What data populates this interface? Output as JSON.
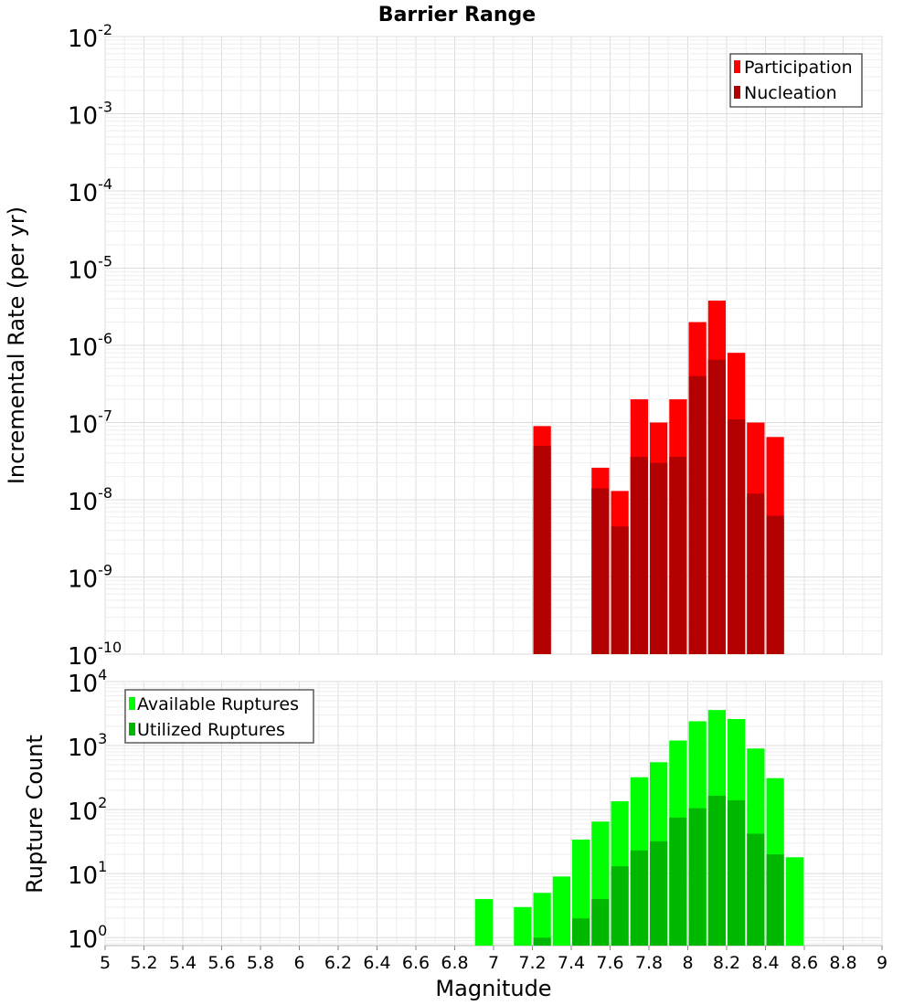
{
  "title": "Barrier Range",
  "chart_data": [
    {
      "type": "bar",
      "ylabel": "Incremental Rate (per yr)",
      "xlabel": "",
      "yscale": "log",
      "ylim": [
        1e-10,
        0.01
      ],
      "xlim": [
        5,
        9
      ],
      "legend_position": "top-right",
      "x": [
        7.25,
        7.55,
        7.65,
        7.75,
        7.85,
        7.95,
        8.05,
        8.15,
        8.25,
        8.35,
        8.45
      ],
      "series": [
        {
          "name": "Participation",
          "color": "#ff0000",
          "values": [
            9e-08,
            2.6e-08,
            1.3e-08,
            2e-07,
            1e-07,
            2e-07,
            2e-06,
            3.8e-06,
            8e-07,
            1e-07,
            6.5e-08
          ]
        },
        {
          "name": "Nucleation",
          "color": "#b30000",
          "values": [
            5e-08,
            1.4e-08,
            4.5e-09,
            3.6e-08,
            3e-08,
            3.6e-08,
            4e-07,
            6.5e-07,
            1.1e-07,
            1.2e-08,
            6.2e-09
          ]
        }
      ],
      "yticks": [
        {
          "base": "10",
          "exp": "-2"
        },
        {
          "base": "10",
          "exp": "-3"
        },
        {
          "base": "10",
          "exp": "-4"
        },
        {
          "base": "10",
          "exp": "-5"
        },
        {
          "base": "10",
          "exp": "-6"
        },
        {
          "base": "10",
          "exp": "-7"
        },
        {
          "base": "10",
          "exp": "-8"
        },
        {
          "base": "10",
          "exp": "-9"
        },
        {
          "base": "10",
          "exp": "-10"
        }
      ]
    },
    {
      "type": "bar",
      "ylabel": "Rupture Count",
      "xlabel": "Magnitude",
      "yscale": "log",
      "ylim": [
        0.75,
        10000
      ],
      "xlim": [
        5,
        9
      ],
      "legend_position": "top-left",
      "x": [
        6.95,
        7.15,
        7.25,
        7.35,
        7.45,
        7.55,
        7.65,
        7.75,
        7.85,
        7.95,
        8.05,
        8.15,
        8.25,
        8.35,
        8.45,
        8.55
      ],
      "series": [
        {
          "name": "Available Ruptures",
          "color": "#00ff00",
          "values": [
            4,
            3,
            5,
            9,
            34,
            65,
            135,
            320,
            550,
            1200,
            2400,
            3600,
            2600,
            900,
            310,
            18
          ]
        },
        {
          "name": "Utilized Ruptures",
          "color": "#00b800",
          "values": [
            null,
            null,
            1,
            null,
            2,
            4,
            13,
            23,
            32,
            75,
            105,
            165,
            140,
            42,
            20,
            null
          ]
        }
      ],
      "yticks": [
        {
          "base": "10",
          "exp": "4"
        },
        {
          "base": "10",
          "exp": "3"
        },
        {
          "base": "10",
          "exp": "2"
        },
        {
          "base": "10",
          "exp": "1"
        },
        {
          "base": "10",
          "exp": "0"
        }
      ],
      "xticks": [
        "5",
        "5.2",
        "5.4",
        "5.6",
        "5.8",
        "6",
        "6.2",
        "6.4",
        "6.6",
        "6.8",
        "7",
        "7.2",
        "7.4",
        "7.6",
        "7.8",
        "8",
        "8.2",
        "8.4",
        "8.6",
        "8.8",
        "9"
      ]
    }
  ]
}
